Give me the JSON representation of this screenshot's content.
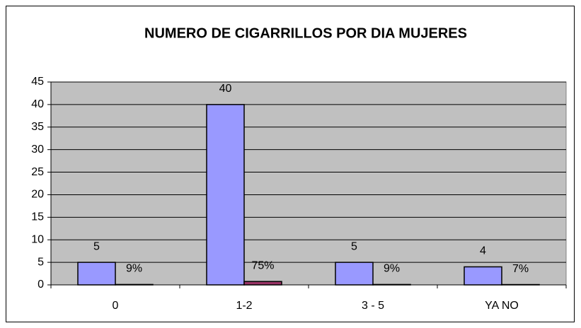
{
  "chart_data": {
    "type": "bar",
    "title": "NUMERO DE CIGARRILLOS POR DIA MUJERES",
    "categories": [
      "0",
      "1-2",
      "3 - 5",
      "YA NO"
    ],
    "series": [
      {
        "color": "#9999ff",
        "values": [
          5,
          40,
          5,
          4
        ]
      },
      {
        "color": "#993366",
        "values": [
          0.09,
          0.75,
          0.09,
          0.07
        ],
        "value_labels": [
          "9%",
          "75%",
          "9%",
          "7%"
        ]
      }
    ],
    "ylim": [
      0,
      45
    ],
    "yticks": [
      0,
      5,
      10,
      15,
      20,
      25,
      30,
      35,
      40,
      45
    ],
    "grid": true
  }
}
